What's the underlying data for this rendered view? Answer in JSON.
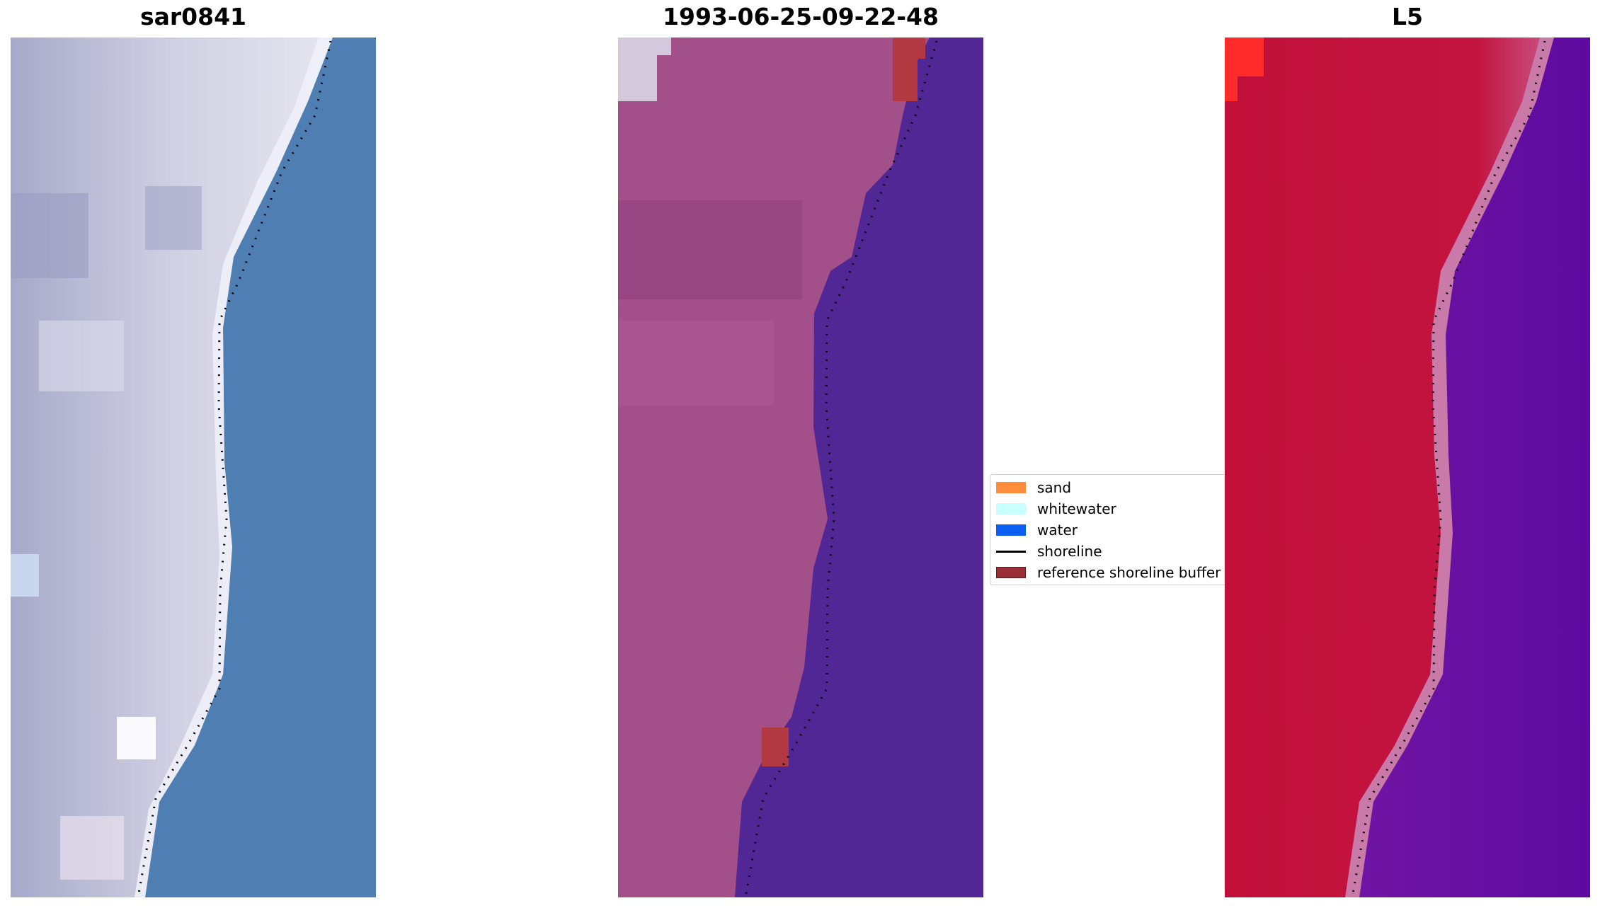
{
  "panels": [
    {
      "title": "sar0841",
      "style": "rgb"
    },
    {
      "title": "1993-06-25-09-22-48",
      "style": "false-color"
    },
    {
      "title": "L5",
      "style": "index"
    }
  ],
  "legend": {
    "items": [
      {
        "label": "sand",
        "color": "#ff8c3a",
        "kind": "patch"
      },
      {
        "label": "whitewater",
        "color": "#c8ffff",
        "kind": "patch"
      },
      {
        "label": "water",
        "color": "#0a5ef0",
        "kind": "patch"
      },
      {
        "label": "shoreline",
        "color": "#000000",
        "kind": "line"
      },
      {
        "label": "reference shoreline buffer",
        "color": "#9b2f36",
        "kind": "patch"
      }
    ]
  },
  "colors": {
    "rgb_water": "#4f7fb2",
    "rgb_land": "#c6c6dc",
    "fc_water": "#512795",
    "fc_land": "#a3508a",
    "idx_water": "#6a13a0",
    "idx_land": "#c0103a",
    "buffer": "#b23841",
    "shoreline": "#000000"
  }
}
